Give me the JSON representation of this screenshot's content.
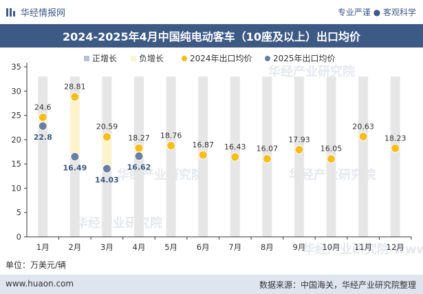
{
  "header": {
    "brand": "华经情报网",
    "slogan": "专业严谨 ● 客观科学"
  },
  "title": "2024-2025年4月中国纯电动客车（10座及以上）出口均价",
  "unit": "单位：万美元/辆",
  "footer": {
    "left": "www.huaon.com",
    "right": "数据来源：中国海关，华经产业研究院整理"
  },
  "watermarks": [
    "华经产业研究院",
    "华经产业研究院",
    "华经产业研究院",
    "华经产业研究院",
    "华经产业研究院 www.huaon.com"
  ],
  "colors": {
    "title_bg": "#3d5a84",
    "footer_bg": "#dfe5ef",
    "bar_bg": "#e6e6e6",
    "positive": "#b7c2d2",
    "negative": "#fdf4cf",
    "series_2024": "#f5be1b",
    "series_2025": "#6a7ea0"
  },
  "chart_data": {
    "type": "line",
    "categories": [
      "1月",
      "2月",
      "3月",
      "4月",
      "5月",
      "6月",
      "7月",
      "8月",
      "9月",
      "10月",
      "11月",
      "12月"
    ],
    "ylim": [
      0,
      35
    ],
    "yticks": [
      0,
      5,
      10,
      15,
      20,
      25,
      30,
      35
    ],
    "legend": [
      "正增长",
      "负增长",
      "2024年出口均价",
      "2025年出口均价"
    ],
    "legend_position": "top",
    "series": [
      {
        "name": "2024年出口均价",
        "values": [
          24.6,
          28.81,
          20.59,
          18.27,
          18.76,
          16.87,
          16.43,
          16.07,
          17.93,
          16.05,
          20.63,
          18.23
        ]
      },
      {
        "name": "2025年出口均价",
        "values": [
          22.8,
          16.49,
          14.03,
          16.62,
          null,
          null,
          null,
          null,
          null,
          null,
          null,
          null
        ]
      }
    ],
    "labels_2024": [
      "24.6",
      "28.81",
      "20.59",
      "18.27",
      "18.76",
      "16.87",
      "16.43",
      "16.07",
      "17.93",
      "16.05",
      "20.63",
      "18.23"
    ],
    "labels_2025": [
      "22.8",
      "16.49",
      "14.03",
      "16.62"
    ]
  }
}
